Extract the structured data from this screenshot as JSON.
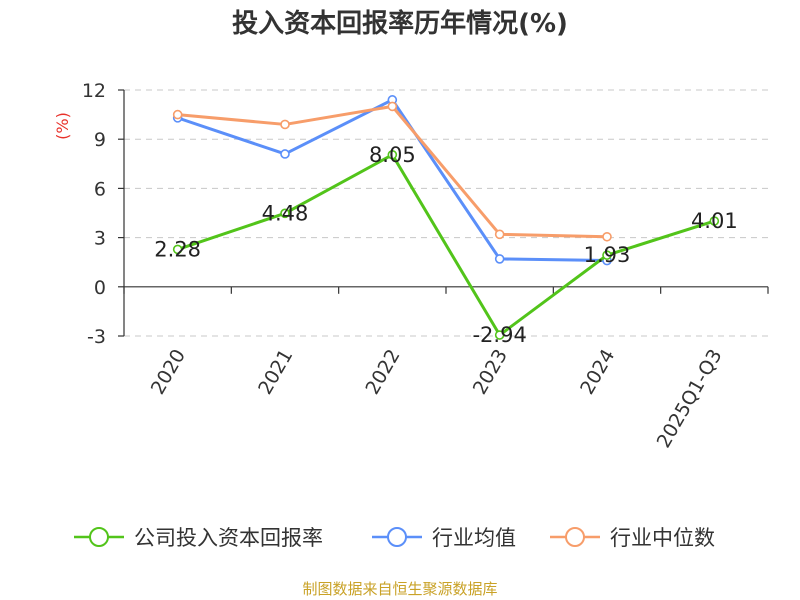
{
  "chart_data": {
    "type": "line",
    "title": "投入资本回报率历年情况(%)",
    "ylabel": "(%)",
    "categories": [
      "2020",
      "2021",
      "2022",
      "2023",
      "2024",
      "2025Q1-Q3"
    ],
    "ylim": [
      -3,
      12
    ],
    "yticks": [
      "12",
      "9",
      "6",
      "3",
      "0",
      "-3"
    ],
    "grid": true,
    "legend_position": "bottom",
    "series": [
      {
        "name": "公司投入资本回报率",
        "color": "#52c41a",
        "values": [
          2.28,
          4.48,
          8.05,
          -2.94,
          1.93,
          4.01
        ],
        "labels": [
          "2.28",
          "4.48",
          "8.05",
          "-2.94",
          "1.93",
          "4.01"
        ]
      },
      {
        "name": "行业均值",
        "color": "#5b8ff9",
        "values": [
          10.3,
          8.1,
          11.4,
          1.7,
          1.6,
          null
        ]
      },
      {
        "name": "行业中位数",
        "color": "#f79d6a",
        "values": [
          10.5,
          9.9,
          11.0,
          3.2,
          3.05,
          null
        ]
      }
    ],
    "source": "制图数据来自恒生聚源数据库"
  },
  "colors": {
    "title": "#333333",
    "ylabel": "#e8312a",
    "source": "#c9a227",
    "grid": "#c8c8c8"
  }
}
